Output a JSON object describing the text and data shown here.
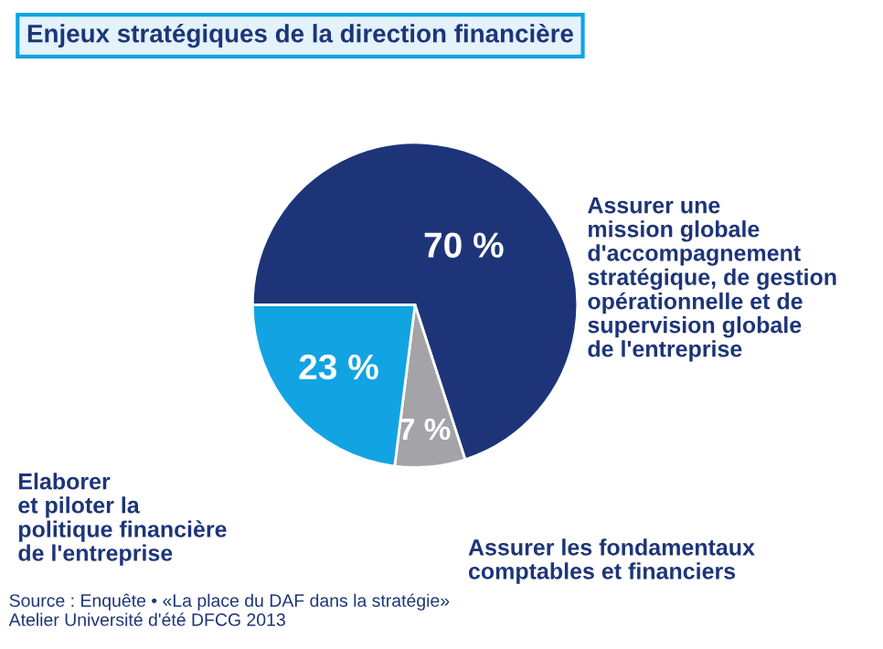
{
  "chart_data": {
    "type": "pie",
    "title": "Enjeux stratégiques de la direction financière",
    "categories": [
      "Assurer une\nmission globale\nd'accompagnement\nstratégique, de gestion\nopérationnelle et de\nsupervision globale\nde l'entreprise",
      "Assurer les fondamentaux\ncomptables et financiers",
      "Elaborer\net piloter la\npolitique financière\nde l'entreprise"
    ],
    "values": [
      70,
      7,
      23
    ],
    "value_labels": [
      "70 %",
      "7 %",
      "23 %"
    ],
    "colors": [
      "#1d3578",
      "#a3a3a8",
      "#12a3e3"
    ],
    "annotations": [
      "Source : Enquête • «La place du DAF dans la stratégie»\nAtelier Université d'été DFCG 2013"
    ]
  }
}
